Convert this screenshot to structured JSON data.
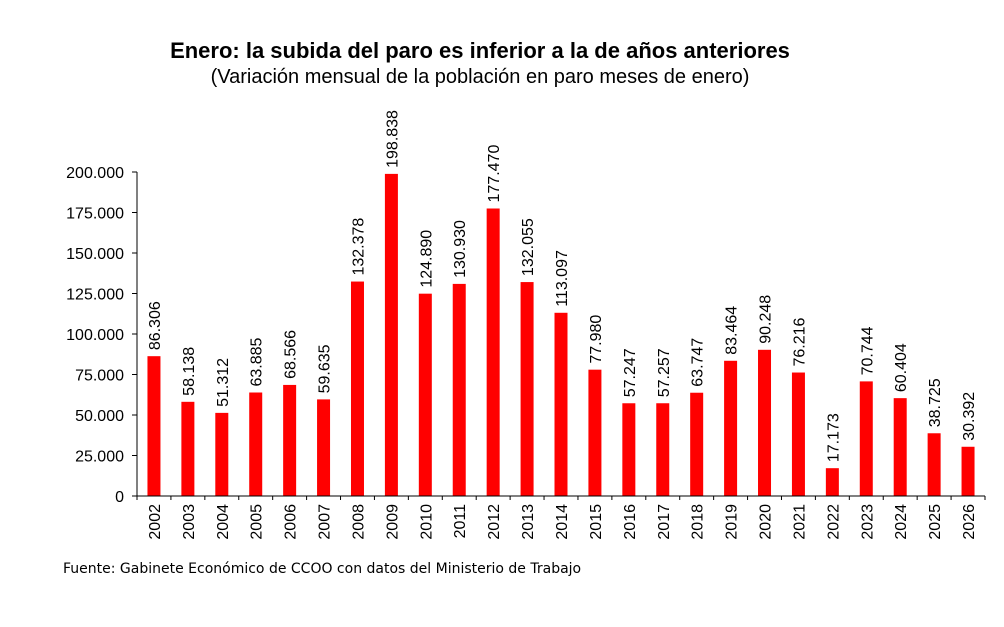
{
  "chart_data": {
    "type": "bar",
    "title": "Enero: la subida del paro es inferior a la de años anteriores",
    "subtitle": "(Variación mensual de la población en paro meses de enero)",
    "source": "Fuente: Gabinete Económico de CCOO con datos del Ministerio de Trabajo",
    "categories": [
      "2002",
      "2003",
      "2004",
      "2005",
      "2006",
      "2007",
      "2008",
      "2009",
      "2010",
      "2011",
      "2012",
      "2013",
      "2014",
      "2015",
      "2016",
      "2017",
      "2018",
      "2019",
      "2020",
      "2021",
      "2022",
      "2023",
      "2024",
      "2025",
      "2026"
    ],
    "values": [
      86306,
      58138,
      51312,
      63885,
      68566,
      59635,
      132378,
      198838,
      124890,
      130930,
      177470,
      132055,
      113097,
      77980,
      57247,
      57257,
      63747,
      83464,
      90248,
      76216,
      17173,
      70744,
      60404,
      38725,
      30392
    ],
    "data_labels": [
      "86.306",
      "58.138",
      "51.312",
      "63.885",
      "68.566",
      "59.635",
      "132.378",
      "198.838",
      "124.890",
      "130.930",
      "177.470",
      "132.055",
      "113.097",
      "77.980",
      "57.247",
      "57.257",
      "63.747",
      "83.464",
      "90.248",
      "76.216",
      "17.173",
      "70.744",
      "60.404",
      "38.725",
      "30.392"
    ],
    "y_ticks": [
      0,
      25000,
      50000,
      75000,
      100000,
      125000,
      150000,
      175000,
      200000
    ],
    "y_tick_labels": [
      "0",
      "25.000",
      "50.000",
      "75.000",
      "100.000",
      "125.000",
      "150.000",
      "175.000",
      "200.000"
    ],
    "ylim": [
      0,
      200000
    ],
    "bar_color": "#ff0000",
    "grid": false,
    "legend": "none"
  }
}
